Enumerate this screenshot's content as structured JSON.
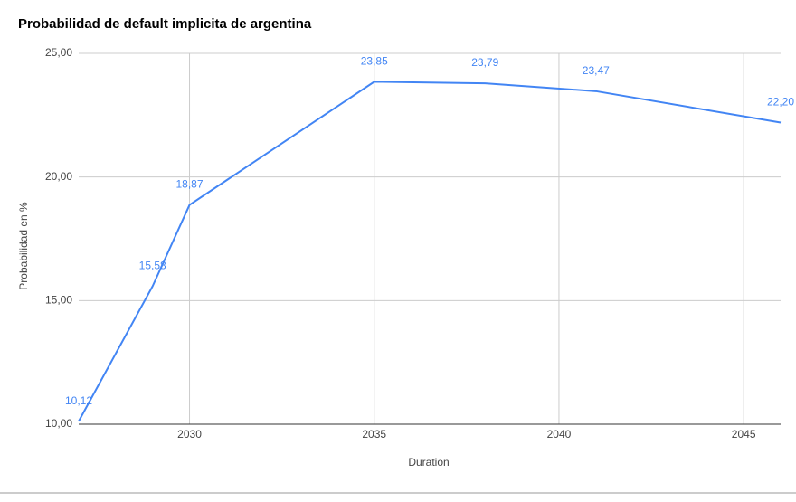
{
  "chart_data": {
    "type": "line",
    "title": "Probabilidad de default implicita de argentina",
    "x_label": "Duration",
    "y_label": "Probabilidad en %",
    "x": [
      2027,
      2029,
      2030,
      2035,
      2038,
      2041,
      2046
    ],
    "series": [
      {
        "name": "Probabilidad en %",
        "color": "#4285f4",
        "values": [
          10.12,
          15.58,
          18.87,
          23.85,
          23.79,
          23.47,
          22.2
        ],
        "value_labels": [
          "10,12",
          "15,58",
          "18,87",
          "23,85",
          "23,79",
          "23,47",
          "22,20"
        ]
      }
    ],
    "xlim": [
      2027,
      2046
    ],
    "xticks": [
      2030,
      2035,
      2040,
      2045
    ],
    "ylim": [
      10,
      25
    ],
    "yticks": [
      {
        "value": 10,
        "label": "10,00"
      },
      {
        "value": 15,
        "label": "15,00"
      },
      {
        "value": 20,
        "label": "20,00"
      },
      {
        "value": 25,
        "label": "25,00"
      }
    ],
    "grid": true
  }
}
